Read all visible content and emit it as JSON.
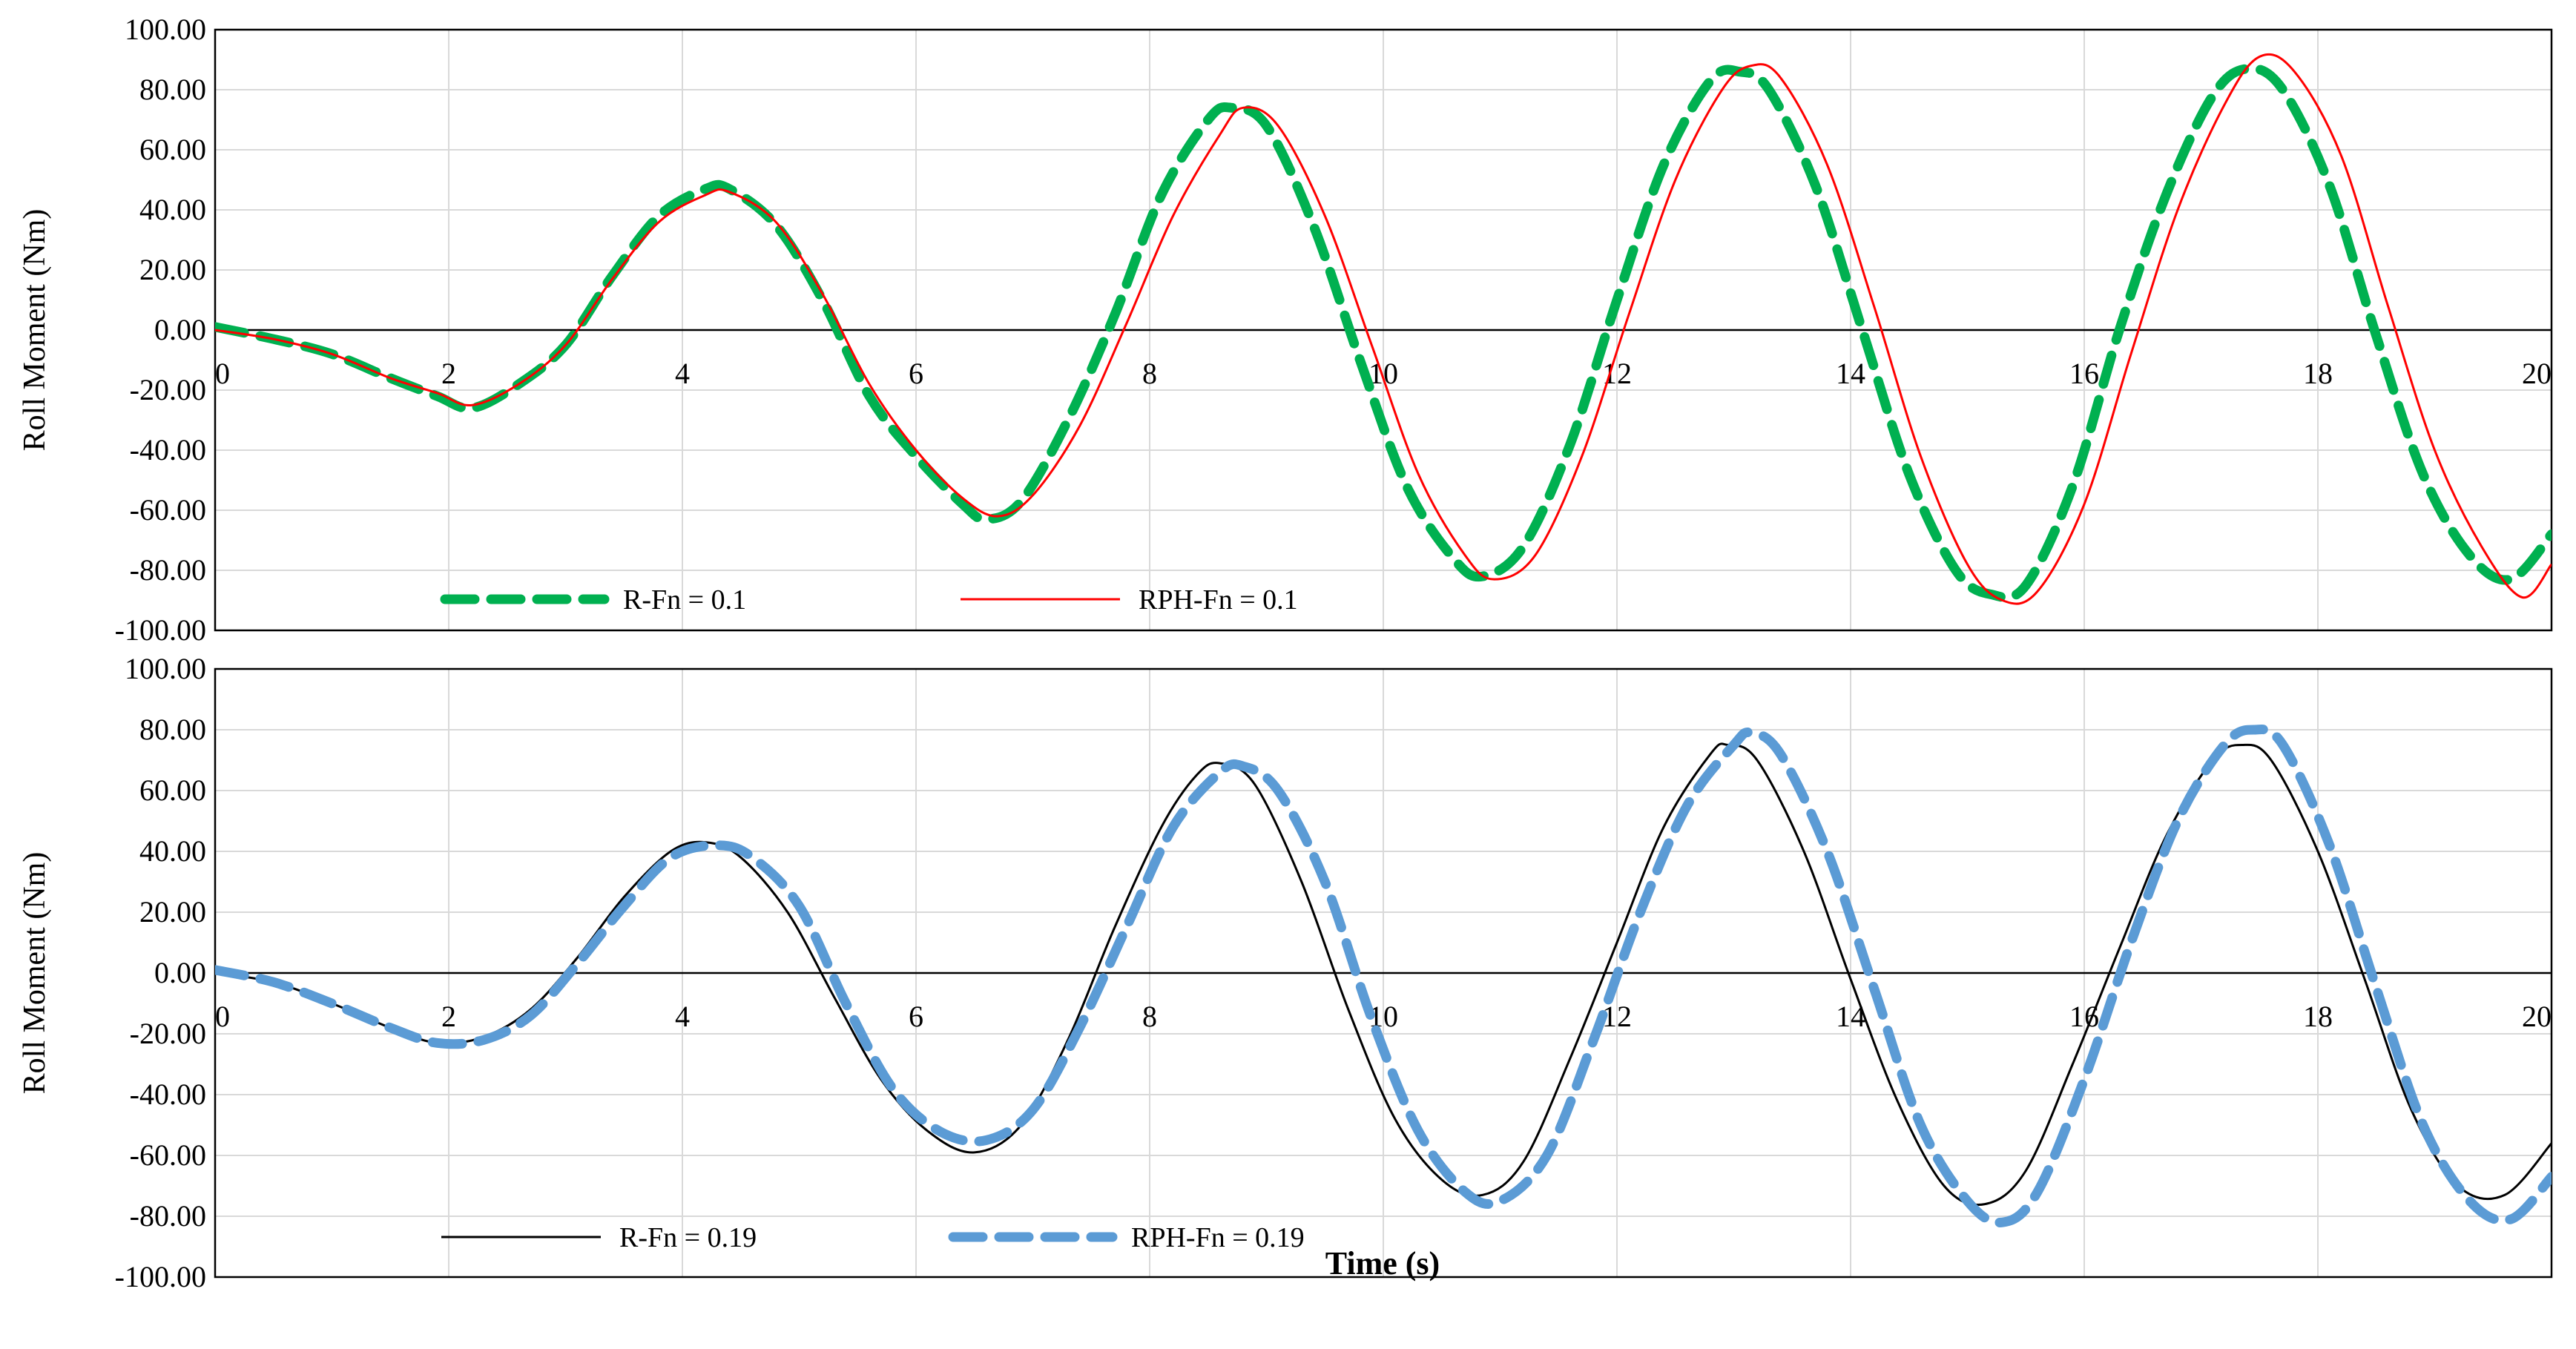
{
  "chart_data": [
    {
      "type": "line",
      "ylabel": "Roll Moment (Nm)",
      "xlabel": "",
      "xlim": [
        0,
        20
      ],
      "ylim": [
        -100,
        100
      ],
      "x_ticks": [
        "0",
        "2",
        "4",
        "6",
        "8",
        "10",
        "12",
        "14",
        "16",
        "18",
        "20"
      ],
      "y_ticks": [
        "100.00",
        "80.00",
        "60.00",
        "40.00",
        "20.00",
        "0.00",
        "-20.00",
        "-40.00",
        "-60.00",
        "-80.00",
        "-100.00"
      ],
      "grid": true,
      "legend": "bottom",
      "series": [
        {
          "name": "R-Fn = 0.1",
          "color": "#00B050",
          "style": "dashed",
          "x": [
            0,
            0.5,
            1,
            1.5,
            1.9,
            2.2,
            2.6,
            3.0,
            3.4,
            3.8,
            4.2,
            4.4,
            4.8,
            5.2,
            5.6,
            6.0,
            6.4,
            6.6,
            6.9,
            7.3,
            7.7,
            8.1,
            8.5,
            8.7,
            9.0,
            9.4,
            9.8,
            10.2,
            10.6,
            10.85,
            11.2,
            11.6,
            12.0,
            12.4,
            12.8,
            13.05,
            13.3,
            13.7,
            14.1,
            14.5,
            14.9,
            15.2,
            15.5,
            15.9,
            16.3,
            16.7,
            17.1,
            17.4,
            17.7,
            18.1,
            18.5,
            18.9,
            19.3,
            19.65,
            20.0
          ],
          "y": [
            1,
            -3,
            -8,
            -16,
            -22,
            -26,
            -18,
            -5,
            18,
            38,
            47,
            47,
            35,
            10,
            -22,
            -42,
            -58,
            -63,
            -57,
            -30,
            5,
            45,
            70,
            74,
            68,
            35,
            -10,
            -52,
            -76,
            -82,
            -72,
            -38,
            10,
            55,
            83,
            86,
            80,
            48,
            0,
            -48,
            -80,
            -88,
            -85,
            -52,
            0,
            45,
            78,
            87,
            80,
            48,
            -2,
            -48,
            -75,
            -83,
            -68
          ]
        },
        {
          "name": "RPH-Fn = 0.1",
          "color": "#FF0000",
          "style": "solid",
          "x": [
            0,
            0.5,
            1,
            1.5,
            1.9,
            2.2,
            2.6,
            3.0,
            3.4,
            3.8,
            4.2,
            4.4,
            4.8,
            5.2,
            5.6,
            6.0,
            6.4,
            6.7,
            7.0,
            7.4,
            7.8,
            8.2,
            8.6,
            8.8,
            9.1,
            9.5,
            9.9,
            10.3,
            10.7,
            10.95,
            11.3,
            11.7,
            12.1,
            12.5,
            12.9,
            13.15,
            13.4,
            13.8,
            14.2,
            14.6,
            15.0,
            15.3,
            15.6,
            16.0,
            16.4,
            16.8,
            17.2,
            17.5,
            17.8,
            18.2,
            18.6,
            19.0,
            19.4,
            19.75,
            20.0
          ],
          "y": [
            0,
            -3,
            -8,
            -16,
            -21,
            -25,
            -18,
            -5,
            17,
            36,
            45,
            46,
            36,
            12,
            -18,
            -40,
            -56,
            -62,
            -55,
            -32,
            2,
            38,
            65,
            74,
            68,
            38,
            -5,
            -48,
            -75,
            -83,
            -75,
            -42,
            5,
            50,
            80,
            88,
            84,
            55,
            8,
            -42,
            -78,
            -90,
            -87,
            -58,
            -8,
            40,
            75,
            91,
            86,
            58,
            8,
            -40,
            -72,
            -89,
            -78
          ]
        }
      ]
    },
    {
      "type": "line",
      "ylabel": "Roll Moment (Nm)",
      "xlabel": "Time (s)",
      "xlim": [
        0,
        20
      ],
      "ylim": [
        -100,
        100
      ],
      "x_ticks": [
        "0",
        "2",
        "4",
        "6",
        "8",
        "10",
        "12",
        "14",
        "16",
        "18",
        "20"
      ],
      "y_ticks": [
        "100.00",
        "80.00",
        "60.00",
        "40.00",
        "20.00",
        "0.00",
        "-20.00",
        "-40.00",
        "-60.00",
        "-80.00",
        "-100.00"
      ],
      "grid": true,
      "legend": "bottom",
      "series": [
        {
          "name": "R-Fn = 0.19",
          "color": "#000000",
          "style": "solid",
          "x": [
            0,
            0.5,
            1,
            1.5,
            1.9,
            2.3,
            2.7,
            3.1,
            3.5,
            3.9,
            4.2,
            4.5,
            4.9,
            5.3,
            5.7,
            6.1,
            6.5,
            6.9,
            7.3,
            7.7,
            8.1,
            8.4,
            8.6,
            8.9,
            9.3,
            9.7,
            10.1,
            10.5,
            10.85,
            11.2,
            11.6,
            12.0,
            12.4,
            12.8,
            12.95,
            13.2,
            13.6,
            14.0,
            14.4,
            14.8,
            15.15,
            15.5,
            15.9,
            16.3,
            16.7,
            17.1,
            17.35,
            17.6,
            18.0,
            18.4,
            18.8,
            19.2,
            19.6,
            20.0
          ],
          "y": [
            0,
            -3,
            -10,
            -18,
            -23,
            -21,
            -12,
            5,
            25,
            40,
            43,
            38,
            20,
            -8,
            -35,
            -52,
            -59,
            -50,
            -22,
            15,
            48,
            65,
            69,
            62,
            30,
            -12,
            -48,
            -68,
            -73,
            -62,
            -28,
            10,
            48,
            72,
            75,
            70,
            40,
            -2,
            -42,
            -70,
            -76,
            -65,
            -30,
            8,
            45,
            70,
            75,
            70,
            40,
            -2,
            -45,
            -70,
            -73,
            -56
          ]
        },
        {
          "name": "RPH-Fn = 0.19",
          "color": "#5B9BD5",
          "style": "dashed",
          "x": [
            0,
            0.5,
            1,
            1.5,
            1.9,
            2.3,
            2.7,
            3.1,
            3.5,
            3.9,
            4.3,
            4.6,
            5.0,
            5.4,
            5.8,
            6.2,
            6.6,
            7.0,
            7.4,
            7.8,
            8.2,
            8.6,
            8.8,
            9.1,
            9.5,
            9.9,
            10.3,
            10.7,
            11.0,
            11.4,
            11.8,
            12.2,
            12.6,
            13.0,
            13.15,
            13.4,
            13.8,
            14.2,
            14.6,
            15.0,
            15.3,
            15.6,
            16.0,
            16.4,
            16.8,
            17.2,
            17.45,
            17.7,
            18.1,
            18.5,
            18.9,
            19.3,
            19.65,
            20.0
          ],
          "y": [
            1,
            -3,
            -10,
            -18,
            -23,
            -22,
            -14,
            3,
            22,
            38,
            42,
            38,
            22,
            -10,
            -38,
            -52,
            -55,
            -45,
            -18,
            15,
            48,
            66,
            68,
            60,
            30,
            -15,
            -52,
            -72,
            -75,
            -60,
            -22,
            20,
            55,
            75,
            79,
            72,
            40,
            -5,
            -50,
            -75,
            -82,
            -72,
            -35,
            10,
            50,
            75,
            80,
            75,
            42,
            -5,
            -50,
            -75,
            -81,
            -67
          ]
        }
      ]
    }
  ]
}
